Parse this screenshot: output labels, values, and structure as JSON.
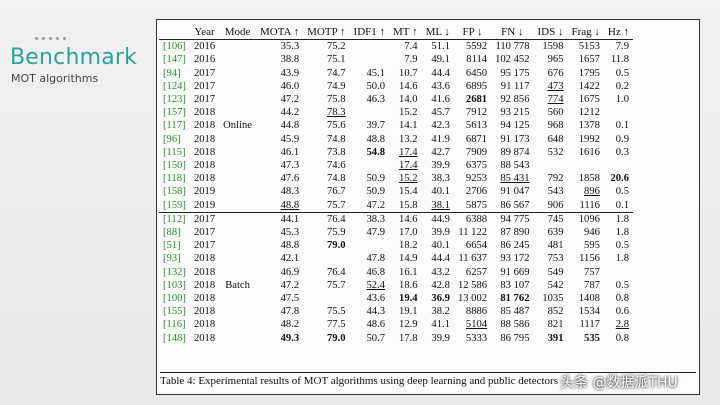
{
  "sidebar": {
    "title": "Benchmark",
    "subtitle": "MOT algorithms"
  },
  "table": {
    "headers": [
      "",
      "Year",
      "Mode",
      "MOTA ↑",
      "MOTP ↑",
      "IDF1 ↑",
      "MT ↑",
      "ML ↓",
      "FP ↓",
      "FN ↓",
      "IDS ↓",
      "Frag ↓",
      "Hz ↑"
    ],
    "online_label": "Online",
    "batch_label": "Batch",
    "online": [
      [
        "[106]",
        "2016",
        "",
        "35.3",
        "75.2",
        "",
        "7.4",
        "51.1",
        "5592",
        "110 778",
        "1598",
        "5153",
        "7.9"
      ],
      [
        "[147]",
        "2016",
        "",
        "38.8",
        "75.1",
        "",
        "7.9",
        "49.1",
        "8114",
        "102 452",
        "965",
        "1657",
        "11.8"
      ],
      [
        "[94]",
        "2017",
        "",
        "43.9",
        "74.7",
        "45.1",
        "10.7",
        "44.4",
        "6450",
        "95 175",
        "676",
        "1795",
        "0.5"
      ],
      [
        "[124]",
        "2017",
        "",
        "46.0",
        "74.9",
        "50.0",
        "14.6",
        "43.6",
        "6895",
        "91 117",
        "473",
        "1422",
        "0.2"
      ],
      [
        "[123]",
        "2017",
        "",
        "47.2",
        "75.8",
        "46.3",
        "14.0",
        "41.6",
        "2681",
        "92 856",
        "774",
        "1675",
        "1.0"
      ],
      [
        "[157]",
        "2018",
        "",
        "44.2",
        "78.3",
        "",
        "15.2",
        "45.7",
        "7912",
        "93 215",
        "560",
        "1212",
        ""
      ],
      [
        "[117]",
        "2018",
        "",
        "44.8",
        "75.6",
        "39.7",
        "14.1",
        "42.3",
        "5613",
        "94 125",
        "968",
        "1378",
        "0.1"
      ],
      [
        "[96]",
        "2018",
        "",
        "45.9",
        "74.8",
        "48.8",
        "13.2",
        "41.9",
        "6871",
        "91 173",
        "648",
        "1992",
        "0.9"
      ],
      [
        "[115]",
        "2018",
        "",
        "46.1",
        "73.8",
        "54.8",
        "17.4",
        "42.7",
        "7909",
        "89 874",
        "532",
        "1616",
        "0.3"
      ],
      [
        "[150]",
        "2018",
        "",
        "47.3",
        "74.6",
        "",
        "17.4",
        "39.9",
        "6375",
        "88 543",
        "",
        "",
        ""
      ],
      [
        "[118]",
        "2018",
        "",
        "47.6",
        "74.8",
        "50.9",
        "15.2",
        "38.3",
        "9253",
        "85 431",
        "792",
        "1858",
        "20.6"
      ],
      [
        "[158]",
        "2019",
        "",
        "48.3",
        "76.7",
        "50.9",
        "15.4",
        "40.1",
        "2706",
        "91 047",
        "543",
        "896",
        "0.5"
      ],
      [
        "[159]",
        "2019",
        "",
        "48.8",
        "75.7",
        "47.2",
        "15.8",
        "38.1",
        "5875",
        "86 567",
        "906",
        "1116",
        "0.1"
      ]
    ],
    "batch": [
      [
        "[112]",
        "2017",
        "",
        "44.1",
        "76.4",
        "38.3",
        "14.6",
        "44.9",
        "6388",
        "94 775",
        "745",
        "1096",
        "1.8"
      ],
      [
        "[88]",
        "2017",
        "",
        "45.3",
        "75.9",
        "47.9",
        "17.0",
        "39.9",
        "11 122",
        "87 890",
        "639",
        "946",
        "1.8"
      ],
      [
        "[51]",
        "2017",
        "",
        "48.8",
        "79.0",
        "",
        "18.2",
        "40.1",
        "6654",
        "86 245",
        "481",
        "595",
        "0.5"
      ],
      [
        "[93]",
        "2018",
        "",
        "42.1",
        "",
        "47.8",
        "14.9",
        "44.4",
        "11 637",
        "93 172",
        "753",
        "1156",
        "1.8"
      ],
      [
        "[132]",
        "2018",
        "",
        "46.9",
        "76.4",
        "46.8",
        "16.1",
        "43.2",
        "6257",
        "91 669",
        "549",
        "757",
        ""
      ],
      [
        "[103]",
        "2018",
        "",
        "47.2",
        "75.7",
        "52.4",
        "18.6",
        "42.8",
        "12 586",
        "83 107",
        "542",
        "787",
        "0.5"
      ],
      [
        "[100]",
        "2018",
        "",
        "47.5",
        "",
        "43.6",
        "19.4",
        "36.9",
        "13 002",
        "81 762",
        "1035",
        "1408",
        "0.8"
      ],
      [
        "[155]",
        "2018",
        "",
        "47.8",
        "75.5",
        "44.3",
        "19.1",
        "38.2",
        "8886",
        "85 487",
        "852",
        "1534",
        "0.6"
      ],
      [
        "[116]",
        "2018",
        "",
        "48.2",
        "77.5",
        "48.6",
        "12.9",
        "41.1",
        "5104",
        "88 586",
        "821",
        "1117",
        "2.8"
      ],
      [
        "[148]",
        "2018",
        "",
        "49.3",
        "79.0",
        "50.7",
        "17.8",
        "39.9",
        "5333",
        "86 795",
        "391",
        "535",
        "0.8"
      ]
    ]
  },
  "caption": "Table 4: Experimental results of MOT algorithms using deep learning and public detectors",
  "watermark": "头条 @数据派THU"
}
